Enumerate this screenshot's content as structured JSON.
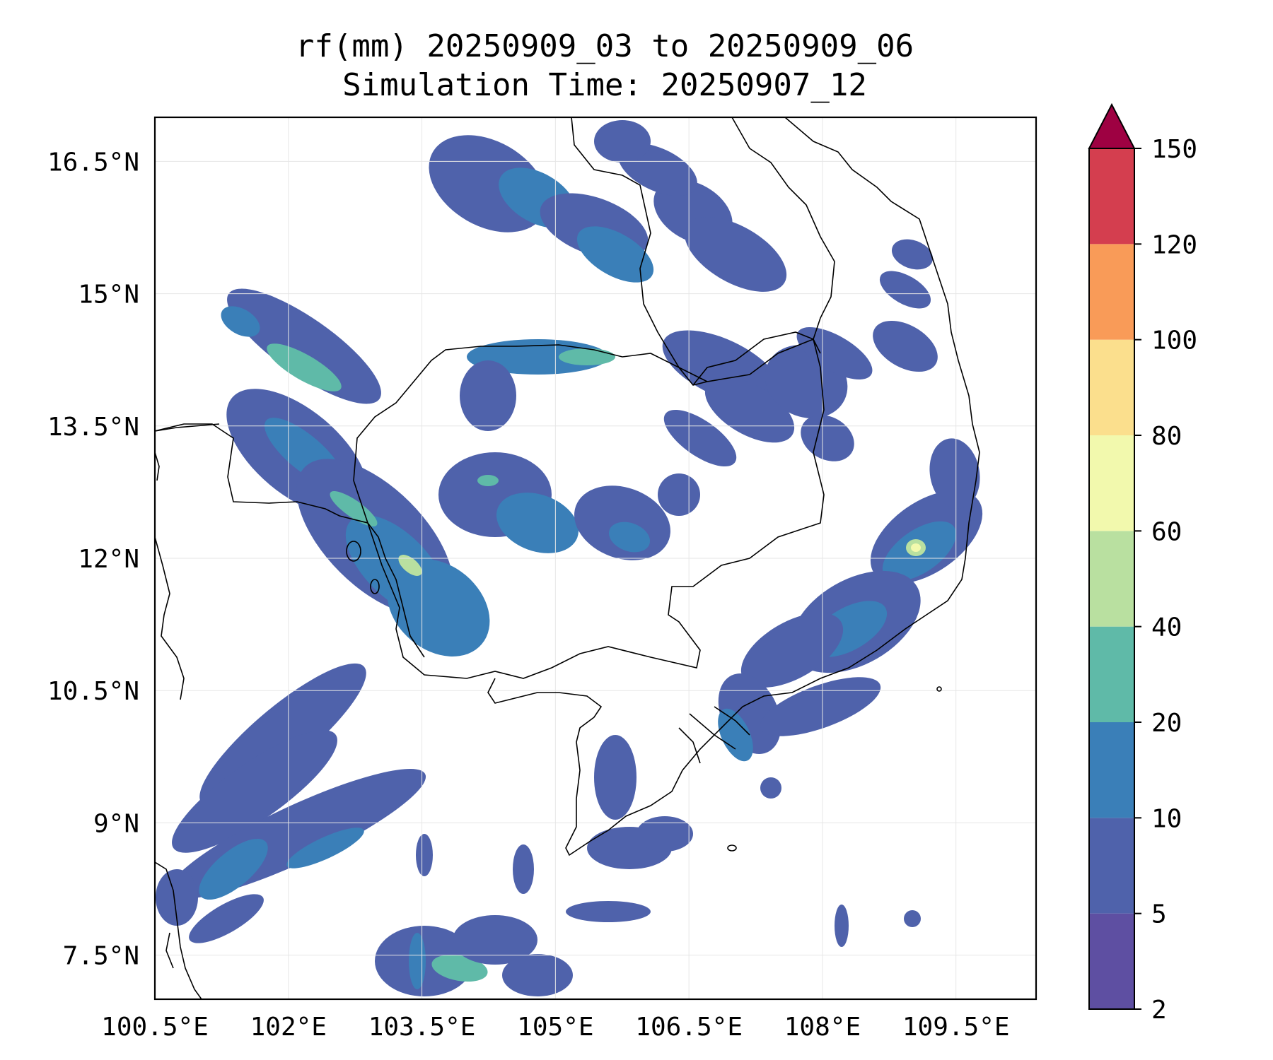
{
  "title": {
    "line1": "rf(mm) 20250909_03 to 20250909_06",
    "line2": "Simulation Time: 20250907_12"
  },
  "map": {
    "lat_ticks": [
      {
        "value": 16.5,
        "label": "16.5°N"
      },
      {
        "value": 15.0,
        "label": "15°N"
      },
      {
        "value": 13.5,
        "label": "13.5°N"
      },
      {
        "value": 12.0,
        "label": "12°N"
      },
      {
        "value": 10.5,
        "label": "10.5°N"
      },
      {
        "value": 9.0,
        "label": "9°N"
      },
      {
        "value": 7.5,
        "label": "7.5°N"
      }
    ],
    "lon_ticks": [
      {
        "value": 100.5,
        "label": "100.5°E"
      },
      {
        "value": 102.0,
        "label": "102°E"
      },
      {
        "value": 103.5,
        "label": "103.5°E"
      },
      {
        "value": 105.0,
        "label": "105°E"
      },
      {
        "value": 106.5,
        "label": "106.5°E"
      },
      {
        "value": 108.0,
        "label": "108°E"
      },
      {
        "value": 109.5,
        "label": "109.5°E"
      }
    ],
    "extent": {
      "lon_min": 100.5,
      "lon_max": 110.4,
      "lat_min": 7.0,
      "lat_max": 17.0
    },
    "grid": true
  },
  "colorbar": {
    "levels": [
      "2",
      "5",
      "10",
      "20",
      "40",
      "60",
      "80",
      "100",
      "120",
      "150"
    ],
    "colors": [
      "#5e4fa2",
      "#4f62ab",
      "#3a7fb8",
      "#5fbaa8",
      "#b9e0a0",
      "#f2f9ad",
      "#fbdf8d",
      "#f99b58",
      "#d43e4f",
      "#9e0142"
    ],
    "extend": "max"
  },
  "precip_colors": {
    "c1": "#5e4fa2",
    "c2": "#4f62ab",
    "c3": "#3a7fb8",
    "c4": "#5fbaa8",
    "c5": "#b9e0a0",
    "c6": "#f2f9ad"
  }
}
